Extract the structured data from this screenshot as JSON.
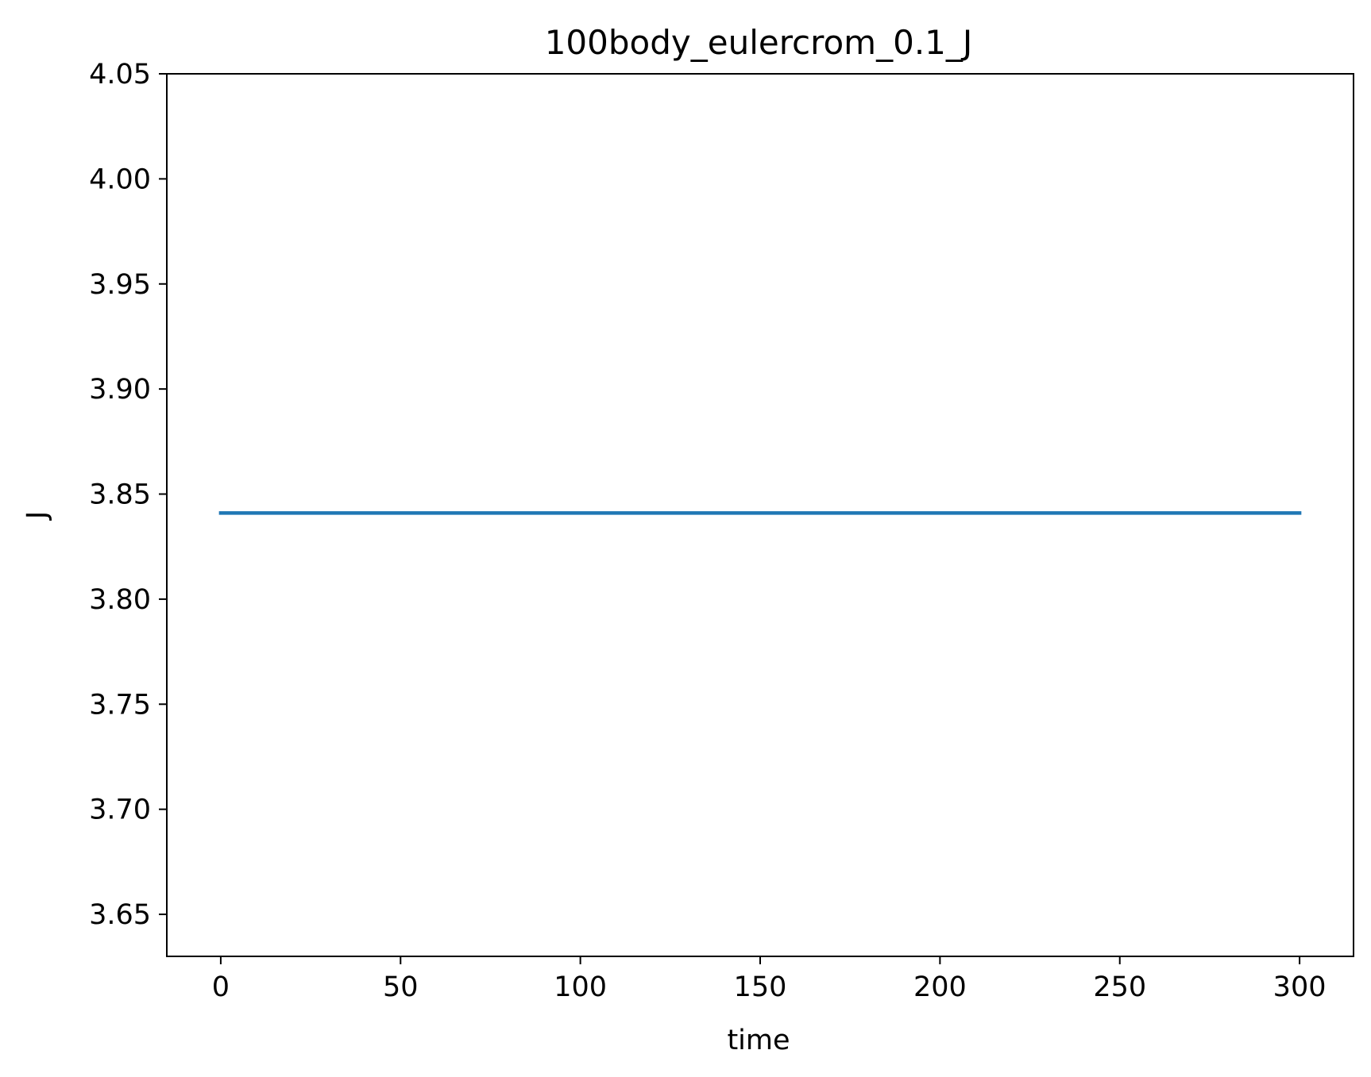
{
  "chart_data": {
    "type": "line",
    "title": "100body_eulercrom_0.1_J",
    "xlabel": "time",
    "ylabel": "J",
    "xlim": [
      -15,
      315
    ],
    "ylim": [
      3.63,
      4.05
    ],
    "xticks": [
      0,
      50,
      100,
      150,
      200,
      250,
      300
    ],
    "xtick_labels": [
      "0",
      "50",
      "100",
      "150",
      "200",
      "250",
      "300"
    ],
    "yticks": [
      3.65,
      3.7,
      3.75,
      3.8,
      3.85,
      3.9,
      3.95,
      4.0,
      4.05
    ],
    "ytick_labels": [
      "3.65",
      "3.70",
      "3.75",
      "3.80",
      "3.85",
      "3.90",
      "3.95",
      "4.00",
      "4.05"
    ],
    "grid": false,
    "series": [
      {
        "color": "#1f77b4",
        "x": [
          0,
          300
        ],
        "y": [
          3.841,
          3.841
        ]
      }
    ]
  }
}
